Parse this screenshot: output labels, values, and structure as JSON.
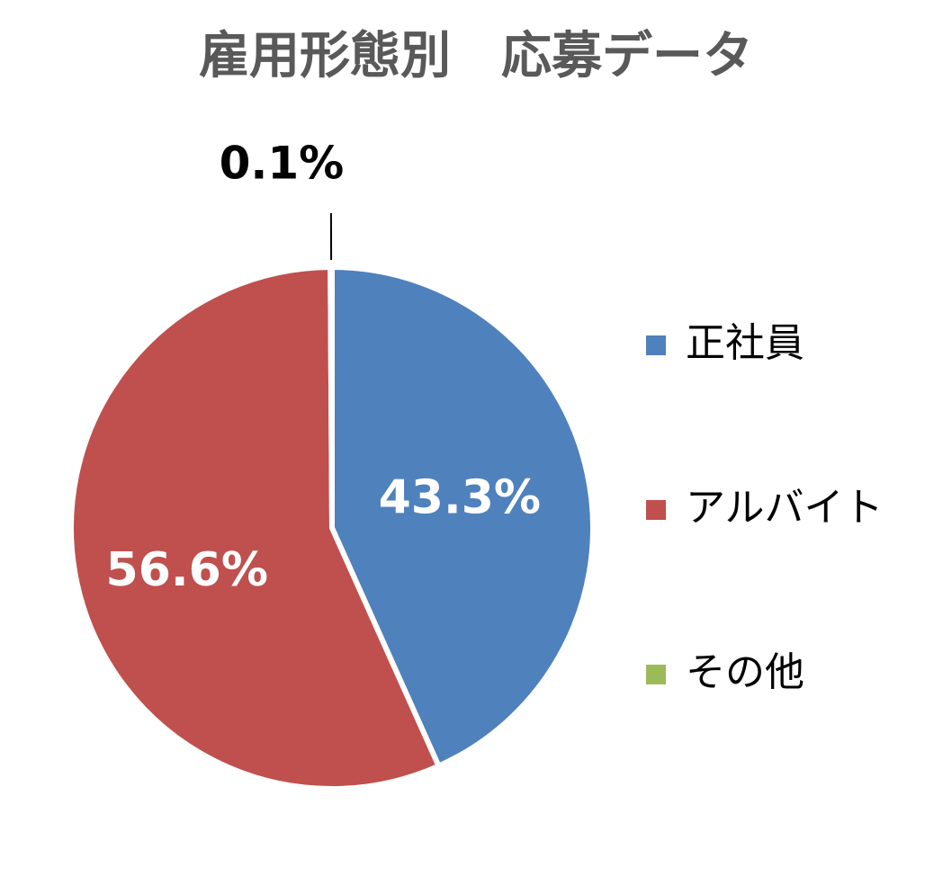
{
  "chart_data": {
    "type": "pie",
    "title": "雇用形態別　応募データ",
    "categories": [
      "正社員",
      "アルバイト",
      "その他"
    ],
    "values": [
      43.3,
      56.6,
      0.1
    ],
    "value_labels": [
      "43.3%",
      "56.6%",
      "0.1%"
    ],
    "colors": [
      "#4f81bd",
      "#c0504d",
      "#9bbb59"
    ],
    "legend": "right"
  }
}
